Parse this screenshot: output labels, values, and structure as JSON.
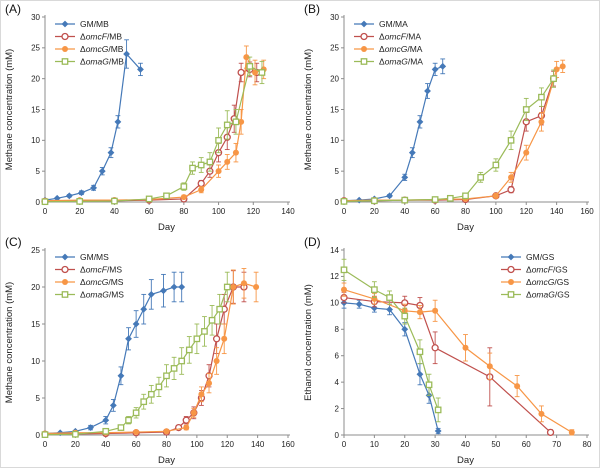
{
  "figure": {
    "background": "#ffffff",
    "axis_color": "#8c8c8c",
    "text_color": "#222222"
  },
  "chart_data": [
    {
      "type": "line",
      "panel_label": "(A)",
      "xlabel": "Day",
      "ylabel": "Methane concentration (mM)",
      "xlim": [
        0,
        140
      ],
      "xtick_step": 20,
      "ylim": [
        0,
        30
      ],
      "ytick_step": 5,
      "grid": false,
      "legend_position": "top-left",
      "series": [
        {
          "name": "GM/MB",
          "color": "#4579B8",
          "marker": "diamond",
          "fill": "solid",
          "points": [
            [
              0,
              0.3,
              0
            ],
            [
              7,
              0.6,
              0
            ],
            [
              14,
              1,
              0.2
            ],
            [
              21,
              1.5,
              0.3
            ],
            [
              28,
              2.3,
              0.4
            ],
            [
              33,
              5,
              0.6
            ],
            [
              38,
              8,
              0.8
            ],
            [
              42,
              13,
              1
            ],
            [
              47,
              24,
              2.3
            ],
            [
              55,
              21.5,
              1
            ]
          ]
        },
        {
          "name": "ΔomcF/MB",
          "color": "#C0504D",
          "marker": "circle",
          "fill": "open",
          "points": [
            [
              0,
              0.1,
              0
            ],
            [
              20,
              0.15,
              0
            ],
            [
              40,
              0.2,
              0
            ],
            [
              60,
              0.3,
              0
            ],
            [
              80,
              0.5,
              0.2
            ],
            [
              90,
              3,
              0.5
            ],
            [
              95,
              5,
              1
            ],
            [
              100,
              8,
              1.5
            ],
            [
              105,
              10.5,
              2
            ],
            [
              109,
              13.5,
              2.2
            ],
            [
              113,
              21,
              1.5
            ],
            [
              118,
              21.5,
              1.2
            ],
            [
              122,
              21,
              1.5
            ]
          ]
        },
        {
          "name": "ΔomcG/MB",
          "color": "#F79646",
          "marker": "circle",
          "fill": "solid",
          "points": [
            [
              0,
              0.2,
              0
            ],
            [
              20,
              0.3,
              0
            ],
            [
              40,
              0.3,
              0
            ],
            [
              60,
              0.4,
              0
            ],
            [
              80,
              0.8,
              0.3
            ],
            [
              90,
              2,
              0.5
            ],
            [
              100,
              5,
              1
            ],
            [
              105,
              6.5,
              1.2
            ],
            [
              110,
              8,
              1.5
            ],
            [
              113,
              13,
              2
            ],
            [
              116,
              23.5,
              1.8
            ],
            [
              121,
              21,
              2
            ],
            [
              126,
              21.5,
              1.5
            ]
          ]
        },
        {
          "name": "ΔomaG/MB",
          "color": "#9BBB59",
          "marker": "square",
          "fill": "open",
          "points": [
            [
              0,
              0.05,
              0
            ],
            [
              20,
              0.1,
              0
            ],
            [
              40,
              0.15,
              0
            ],
            [
              60,
              0.5,
              0.2
            ],
            [
              70,
              1,
              0.3
            ],
            [
              80,
              2.5,
              0.6
            ],
            [
              85,
              5.5,
              1
            ],
            [
              90,
              6,
              1.2
            ],
            [
              95,
              6.5,
              1.5
            ],
            [
              100,
              10,
              2
            ],
            [
              105,
              12.5,
              2.3
            ],
            [
              110,
              13,
              2
            ],
            [
              118,
              22,
              1.5
            ],
            [
              125,
              21,
              1.8
            ]
          ]
        }
      ]
    },
    {
      "type": "line",
      "panel_label": "(B)",
      "xlabel": "Day",
      "ylabel": "Methane concentration (mM)",
      "xlim": [
        0,
        160
      ],
      "xtick_step": 20,
      "ylim": [
        0,
        30
      ],
      "ytick_step": 5,
      "grid": false,
      "legend_position": "top-left",
      "series": [
        {
          "name": "GM/MA",
          "color": "#4579B8",
          "marker": "diamond",
          "fill": "solid",
          "points": [
            [
              0,
              0.2,
              0
            ],
            [
              10,
              0.3,
              0
            ],
            [
              20,
              0.5,
              0
            ],
            [
              30,
              1,
              0.2
            ],
            [
              40,
              4,
              0.5
            ],
            [
              45,
              8,
              0.8
            ],
            [
              50,
              13,
              1
            ],
            [
              55,
              18,
              1.2
            ],
            [
              60,
              21.5,
              1
            ],
            [
              65,
              22,
              1.2
            ]
          ]
        },
        {
          "name": "ΔomcF/MA",
          "color": "#C0504D",
          "marker": "circle",
          "fill": "open",
          "points": [
            [
              0,
              0.2,
              0
            ],
            [
              20,
              0.2,
              0
            ],
            [
              40,
              0.3,
              0
            ],
            [
              60,
              0.3,
              0
            ],
            [
              80,
              0.4,
              0
            ],
            [
              100,
              1,
              0.3
            ],
            [
              110,
              2,
              0.5
            ],
            [
              120,
              13,
              1.5
            ],
            [
              130,
              14,
              1.5
            ],
            [
              138,
              20,
              1.2
            ]
          ]
        },
        {
          "name": "ΔomcG/MA",
          "color": "#F79646",
          "marker": "circle",
          "fill": "solid",
          "points": [
            [
              0,
              0.2,
              0
            ],
            [
              20,
              0.3,
              0
            ],
            [
              40,
              0.3,
              0
            ],
            [
              60,
              0.4,
              0
            ],
            [
              80,
              0.5,
              0
            ],
            [
              100,
              1,
              0.4
            ],
            [
              110,
              4,
              0.8
            ],
            [
              120,
              8,
              1.2
            ],
            [
              130,
              13,
              1.5
            ],
            [
              140,
              21.5,
              1.3
            ],
            [
              144,
              22,
              1
            ]
          ]
        },
        {
          "name": "ΔomaG/MA",
          "color": "#9BBB59",
          "marker": "square",
          "fill": "open",
          "points": [
            [
              0,
              0.1,
              0
            ],
            [
              20,
              0.2,
              0
            ],
            [
              40,
              0.3,
              0
            ],
            [
              60,
              0.4,
              0
            ],
            [
              70,
              0.6,
              0.2
            ],
            [
              80,
              1,
              0.3
            ],
            [
              90,
              4,
              0.8
            ],
            [
              100,
              6,
              1
            ],
            [
              110,
              10,
              1.5
            ],
            [
              120,
              15,
              1.8
            ],
            [
              130,
              17,
              1.5
            ],
            [
              138,
              20,
              1.4
            ]
          ]
        }
      ]
    },
    {
      "type": "line",
      "panel_label": "(C)",
      "xlabel": "Day",
      "ylabel": "Methane concentration (mM)",
      "xlim": [
        0,
        160
      ],
      "xtick_step": 20,
      "ylim": [
        0,
        25
      ],
      "ytick_step": 5,
      "grid": false,
      "legend_position": "top-left",
      "series": [
        {
          "name": "GM/MS",
          "color": "#4579B8",
          "marker": "diamond",
          "fill": "solid",
          "points": [
            [
              0,
              0.2,
              0
            ],
            [
              10,
              0.3,
              0
            ],
            [
              20,
              0.5,
              0
            ],
            [
              30,
              1,
              0.3
            ],
            [
              40,
              2,
              0.5
            ],
            [
              45,
              4,
              0.8
            ],
            [
              50,
              8,
              1.2
            ],
            [
              55,
              13,
              1.5
            ],
            [
              60,
              15,
              1.8
            ],
            [
              65,
              17,
              2
            ],
            [
              70,
              19,
              2
            ],
            [
              78,
              19.5,
              2.2
            ],
            [
              85,
              20,
              2
            ],
            [
              90,
              20,
              2
            ]
          ]
        },
        {
          "name": "ΔomcF/MS",
          "color": "#C0504D",
          "marker": "circle",
          "fill": "open",
          "points": [
            [
              0,
              0.1,
              0
            ],
            [
              20,
              0.15,
              0
            ],
            [
              40,
              0.2,
              0
            ],
            [
              60,
              0.3,
              0
            ],
            [
              80,
              0.4,
              0
            ],
            [
              88,
              1,
              0.3
            ],
            [
              93,
              2,
              0.5
            ],
            [
              98,
              3,
              0.8
            ],
            [
              103,
              5,
              1
            ],
            [
              108,
              8,
              1.5
            ],
            [
              113,
              13,
              2
            ],
            [
              118,
              17,
              2
            ],
            [
              124,
              20,
              2.2
            ],
            [
              131,
              20,
              2
            ]
          ]
        },
        {
          "name": "ΔomcG/MS",
          "color": "#F79646",
          "marker": "circle",
          "fill": "solid",
          "points": [
            [
              0,
              0.2,
              0
            ],
            [
              20,
              0.3,
              0
            ],
            [
              40,
              0.3,
              0
            ],
            [
              60,
              0.4,
              0
            ],
            [
              80,
              0.5,
              0
            ],
            [
              93,
              1,
              0.3
            ],
            [
              98,
              3,
              0.6
            ],
            [
              103,
              5.5,
              1
            ],
            [
              108,
              7,
              1.3
            ],
            [
              113,
              10,
              1.8
            ],
            [
              118,
              13,
              2
            ],
            [
              124,
              20,
              2.3
            ],
            [
              131,
              20.5,
              2
            ],
            [
              139,
              20,
              2
            ]
          ]
        },
        {
          "name": "ΔomaG/MS",
          "color": "#9BBB59",
          "marker": "square",
          "fill": "open",
          "points": [
            [
              0,
              0.05,
              0
            ],
            [
              20,
              0.1,
              0
            ],
            [
              40,
              0.5,
              0.2
            ],
            [
              50,
              1,
              0.3
            ],
            [
              55,
              2,
              0.5
            ],
            [
              60,
              3,
              0.7
            ],
            [
              65,
              4.5,
              1
            ],
            [
              70,
              5.5,
              1.2
            ],
            [
              75,
              6.5,
              1.3
            ],
            [
              80,
              8,
              1.5
            ],
            [
              85,
              9,
              1.5
            ],
            [
              90,
              10,
              1.8
            ],
            [
              95,
              11.5,
              1.8
            ],
            [
              100,
              13,
              2
            ],
            [
              105,
              14,
              2
            ],
            [
              110,
              15.5,
              2
            ],
            [
              115,
              17,
              2
            ],
            [
              120,
              20,
              2
            ]
          ]
        }
      ]
    },
    {
      "type": "line",
      "panel_label": "(D)",
      "xlabel": "Day",
      "ylabel": "Ethanol concentration (mM)",
      "xlim": [
        0,
        80
      ],
      "xtick_step": 10,
      "ylim": [
        0,
        14
      ],
      "ytick_step": 2,
      "grid": false,
      "legend_position": "top-right",
      "series": [
        {
          "name": "GM/GS",
          "color": "#4579B8",
          "marker": "diamond",
          "fill": "solid",
          "points": [
            [
              0,
              10,
              0.4
            ],
            [
              5,
              9.9,
              0.3
            ],
            [
              10,
              9.6,
              0.3
            ],
            [
              15,
              9.5,
              0.4
            ],
            [
              20,
              8,
              0.5
            ],
            [
              25,
              4.6,
              0.8
            ],
            [
              28,
              3,
              0.6
            ],
            [
              31,
              0.3,
              0.2
            ]
          ]
        },
        {
          "name": "ΔomcF/GS",
          "color": "#C0504D",
          "marker": "circle",
          "fill": "open",
          "points": [
            [
              0,
              10.4,
              0.4
            ],
            [
              10,
              10.1,
              0.4
            ],
            [
              20,
              10,
              0.5
            ],
            [
              25,
              9.8,
              0.6
            ],
            [
              30,
              6.6,
              1.2
            ],
            [
              48,
              4.4,
              2.2
            ],
            [
              68,
              0.2,
              0.2
            ]
          ]
        },
        {
          "name": "ΔomcG/GS",
          "color": "#F79646",
          "marker": "circle",
          "fill": "solid",
          "points": [
            [
              0,
              11,
              0.5
            ],
            [
              10,
              10.3,
              0.4
            ],
            [
              20,
              9.4,
              0.5
            ],
            [
              25,
              9.3,
              0.5
            ],
            [
              30,
              9.4,
              0.8
            ],
            [
              40,
              6.6,
              1
            ],
            [
              48,
              5.2,
              1
            ],
            [
              57,
              3.7,
              0.8
            ],
            [
              65,
              1.6,
              0.6
            ],
            [
              75,
              0.2,
              0.2
            ]
          ]
        },
        {
          "name": "ΔomaG/GS",
          "color": "#9BBB59",
          "marker": "square",
          "fill": "open",
          "points": [
            [
              0,
              12.5,
              0.8
            ],
            [
              10,
              11,
              0.6
            ],
            [
              15,
              10.4,
              0.5
            ],
            [
              20,
              9,
              0.6
            ],
            [
              25,
              6.3,
              0.9
            ],
            [
              28,
              3.8,
              0.8
            ],
            [
              31,
              1.9,
              0.9
            ]
          ]
        }
      ]
    }
  ]
}
